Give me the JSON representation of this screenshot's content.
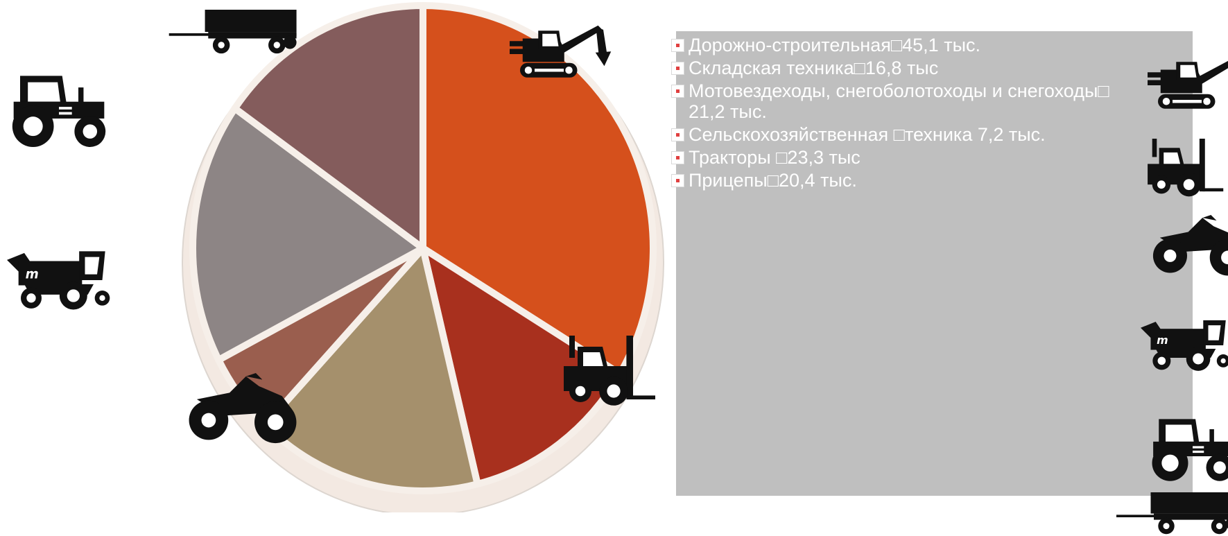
{
  "chart_data": {
    "type": "pie",
    "slices": [
      {
        "label": "Дорожно-строительная□45,1 тыс.",
        "value": 45.1,
        "color": "#d5501c"
      },
      {
        "label": "Складская техника□16,8 тыс",
        "value": 16.8,
        "color": "#a8301e"
      },
      {
        "label": "Мотовездеходы, снегоболотоходы и снегоходы□21,2 тыс.",
        "value": 21.2,
        "color": "#a5906c"
      },
      {
        "label": "Сельскохозяйственная □техника 7,2 тыс.",
        "value": 7.2,
        "color": "#9a5e4e"
      },
      {
        "label": "Тракторы □23,3 тыс",
        "value": 23.3,
        "color": "#8d8585"
      },
      {
        "label": "Прицепы□20,4 тыс.",
        "value": 20.4,
        "color": "#845c5c"
      }
    ],
    "legend_position": "right",
    "legend_marker_color": "#e04040",
    "legend_lines": [
      [
        "Дорожно-строительная□45,1 тыс."
      ],
      [
        "Складская техника□16,8 тыс"
      ],
      [
        "Мотовездеходы, снегоболотоходы и снегоходы□",
        "21,2 тыс."
      ],
      [
        "Сельскохозяйственная □техника 7,2 тыс."
      ],
      [
        "Тракторы □23,3 тыс"
      ],
      [
        "Прицепы□20,4 тыс."
      ]
    ]
  },
  "icons": {
    "left": [
      "trailer-icon",
      "tractor-icon",
      "combine-harvester-icon"
    ],
    "on_pie": [
      "excavator-icon",
      "forklift-icon",
      "atv-icon"
    ],
    "right": [
      "excavator-icon",
      "forklift-icon",
      "atv-icon",
      "combine-harvester-icon",
      "tractor-icon",
      "trailer-icon"
    ]
  }
}
